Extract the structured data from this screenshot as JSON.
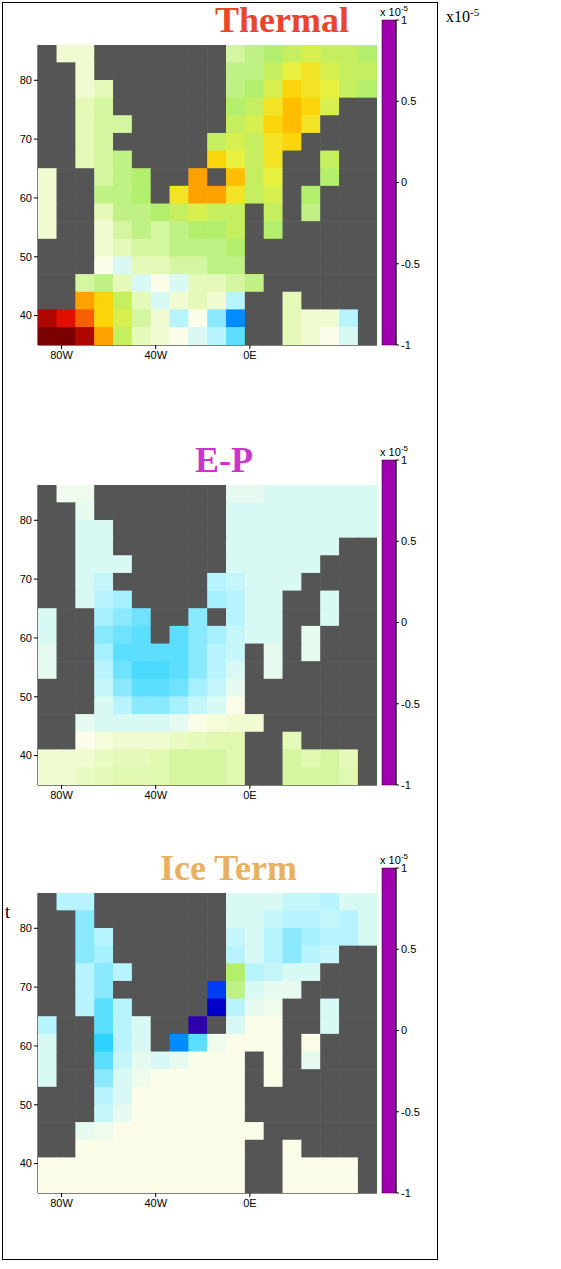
{
  "chart_data": [
    {
      "type": "heatmap",
      "title": "Thermal",
      "color": "#e8452c",
      "x": [
        -86,
        -78,
        -70,
        -62,
        -54,
        -46,
        -38,
        -30,
        -22,
        -14,
        -6,
        2,
        10,
        18,
        26,
        34,
        42,
        50
      ],
      "y": [
        84.5,
        81.5,
        78.5,
        75.5,
        72.5,
        69.5,
        66.5,
        63.5,
        60.5,
        57.5,
        54.5,
        51.5,
        48.5,
        45.5,
        42.5,
        39.5,
        36.5
      ],
      "xlim": [
        -90,
        54
      ],
      "ylim": [
        35,
        86
      ],
      "xticks": [
        {
          "value": -80,
          "label": "80W"
        },
        {
          "value": -40,
          "label": "40W"
        },
        {
          "value": 0,
          "label": "0E"
        }
      ],
      "yticks": [
        40,
        50,
        60,
        70,
        80
      ],
      "cells": [
        [
          null,
          0.05,
          0.05,
          null,
          null,
          null,
          null,
          null,
          null,
          null,
          0.15,
          0.2,
          0.25,
          0.3,
          0.35,
          0.3,
          0.3,
          0.25
        ],
        [
          null,
          null,
          0.05,
          null,
          null,
          null,
          null,
          null,
          null,
          null,
          0.2,
          0.2,
          0.3,
          0.4,
          0.45,
          0.35,
          0.3,
          0.3
        ],
        [
          null,
          null,
          0.05,
          0.1,
          null,
          null,
          null,
          null,
          null,
          null,
          0.2,
          0.25,
          0.35,
          0.5,
          0.45,
          0.4,
          0.3,
          0.25
        ],
        [
          null,
          null,
          0.1,
          0.15,
          null,
          null,
          null,
          null,
          null,
          null,
          0.25,
          0.3,
          0.45,
          0.55,
          0.5,
          0.35,
          null,
          null
        ],
        [
          null,
          null,
          0.1,
          0.15,
          0.15,
          null,
          null,
          null,
          null,
          null,
          0.3,
          0.35,
          0.5,
          0.55,
          0.45,
          null,
          null,
          null
        ],
        [
          null,
          null,
          0.1,
          0.15,
          null,
          null,
          null,
          null,
          null,
          0.3,
          0.35,
          0.3,
          0.45,
          0.5,
          null,
          null,
          null,
          null
        ],
        [
          null,
          null,
          0.1,
          0.15,
          0.2,
          null,
          null,
          null,
          null,
          0.5,
          0.4,
          0.3,
          0.45,
          null,
          null,
          0.3,
          null,
          null
        ],
        [
          0.05,
          null,
          null,
          0.15,
          0.2,
          0.25,
          null,
          null,
          0.6,
          null,
          0.55,
          0.3,
          0.4,
          null,
          null,
          0.25,
          null,
          null
        ],
        [
          0.05,
          null,
          null,
          0.2,
          0.2,
          0.25,
          null,
          0.45,
          0.6,
          0.6,
          0.45,
          0.3,
          0.35,
          null,
          0.25,
          null,
          null,
          null
        ],
        [
          0.05,
          null,
          null,
          0.1,
          0.2,
          0.2,
          0.25,
          0.3,
          0.35,
          0.3,
          0.3,
          null,
          0.3,
          null,
          0.2,
          null,
          null,
          null
        ],
        [
          0.05,
          null,
          null,
          0.05,
          0.15,
          0.2,
          0.15,
          0.2,
          0.25,
          0.25,
          0.3,
          null,
          0.25,
          null,
          null,
          null,
          null,
          null
        ],
        [
          null,
          null,
          null,
          0.05,
          0.1,
          0.15,
          0.15,
          0.2,
          0.2,
          0.2,
          0.25,
          null,
          null,
          null,
          null,
          null,
          null,
          null
        ],
        [
          null,
          null,
          null,
          0,
          -0.05,
          0.1,
          0.1,
          0.15,
          0.15,
          0.2,
          0.2,
          null,
          null,
          null,
          null,
          null,
          null,
          null
        ],
        [
          null,
          null,
          0.15,
          0.2,
          0.1,
          -0.05,
          0,
          -0.05,
          0.1,
          0.1,
          0.15,
          0.2,
          null,
          null,
          null,
          null,
          null,
          null
        ],
        [
          null,
          null,
          0.6,
          0.5,
          0.3,
          0.1,
          -0.05,
          0.05,
          0.1,
          0.05,
          -0.1,
          null,
          null,
          0.1,
          null,
          null,
          null,
          null
        ],
        [
          0.9,
          0.8,
          0.7,
          0.5,
          0.35,
          0.15,
          0.05,
          -0.1,
          0,
          -0.15,
          -0.4,
          null,
          null,
          0.1,
          0.05,
          0.05,
          -0.1,
          null
        ],
        [
          1,
          1,
          0.9,
          0.6,
          0.3,
          0.1,
          0.05,
          0,
          -0.05,
          -0.1,
          -0.2,
          null,
          null,
          0.1,
          0.05,
          0,
          -0.05,
          null
        ]
      ],
      "colorbar": {
        "range": [
          -1,
          1
        ],
        "ticks": [
          -1,
          -0.5,
          0,
          0.5,
          1
        ],
        "multiplier": "x 10",
        "multiplier_exponent": "-5"
      }
    },
    {
      "type": "heatmap",
      "title": "E-P",
      "color": "#cc33cc",
      "x": [
        -86,
        -78,
        -70,
        -62,
        -54,
        -46,
        -38,
        -30,
        -22,
        -14,
        -6,
        2,
        10,
        18,
        26,
        34,
        42,
        50
      ],
      "y": [
        84.5,
        81.5,
        78.5,
        75.5,
        72.5,
        69.5,
        66.5,
        63.5,
        60.5,
        57.5,
        54.5,
        51.5,
        48.5,
        45.5,
        42.5,
        39.5,
        36.5
      ],
      "xlim": [
        -90,
        54
      ],
      "ylim": [
        35,
        86
      ],
      "xticks": [
        {
          "value": -80,
          "label": "80W"
        },
        {
          "value": -40,
          "label": "40W"
        },
        {
          "value": 0,
          "label": "0E"
        }
      ],
      "yticks": [
        40,
        50,
        60,
        70,
        80
      ],
      "cells": [
        [
          null,
          -0.02,
          -0.02,
          null,
          null,
          null,
          null,
          null,
          null,
          null,
          -0.03,
          -0.03,
          -0.05,
          -0.05,
          -0.05,
          -0.05,
          -0.05,
          -0.05
        ],
        [
          null,
          null,
          -0.03,
          null,
          null,
          null,
          null,
          null,
          null,
          null,
          -0.05,
          -0.05,
          -0.05,
          -0.05,
          -0.05,
          -0.05,
          -0.05,
          -0.05
        ],
        [
          null,
          null,
          -0.05,
          -0.05,
          null,
          null,
          null,
          null,
          null,
          null,
          -0.05,
          -0.05,
          -0.05,
          -0.05,
          -0.05,
          -0.05,
          -0.05,
          -0.05
        ],
        [
          null,
          null,
          -0.05,
          -0.05,
          null,
          null,
          null,
          null,
          null,
          null,
          -0.05,
          -0.05,
          -0.05,
          -0.05,
          -0.05,
          -0.05,
          null,
          null
        ],
        [
          null,
          null,
          -0.05,
          -0.05,
          -0.05,
          null,
          null,
          null,
          null,
          null,
          -0.05,
          -0.05,
          -0.05,
          -0.05,
          -0.05,
          null,
          null,
          null
        ],
        [
          null,
          null,
          -0.05,
          -0.08,
          null,
          null,
          null,
          null,
          null,
          -0.1,
          -0.08,
          -0.05,
          -0.05,
          -0.05,
          null,
          null,
          null,
          null
        ],
        [
          null,
          null,
          -0.05,
          -0.1,
          -0.12,
          null,
          null,
          null,
          null,
          -0.12,
          -0.1,
          -0.05,
          -0.05,
          null,
          null,
          -0.05,
          null,
          null
        ],
        [
          -0.05,
          null,
          null,
          -0.12,
          -0.15,
          -0.18,
          null,
          null,
          -0.15,
          null,
          -0.1,
          -0.05,
          -0.05,
          null,
          null,
          -0.05,
          null,
          null
        ],
        [
          -0.05,
          null,
          null,
          -0.15,
          -0.18,
          -0.2,
          null,
          -0.2,
          -0.15,
          -0.12,
          -0.08,
          -0.05,
          -0.05,
          null,
          -0.03,
          null,
          null,
          null
        ],
        [
          -0.03,
          null,
          null,
          -0.12,
          -0.2,
          -0.2,
          -0.2,
          -0.2,
          -0.15,
          -0.1,
          -0.08,
          null,
          -0.03,
          null,
          -0.03,
          null,
          null,
          null
        ],
        [
          -0.03,
          null,
          null,
          -0.1,
          -0.18,
          -0.22,
          -0.22,
          -0.2,
          -0.15,
          -0.1,
          -0.05,
          null,
          -0.03,
          null,
          null,
          null,
          null,
          null
        ],
        [
          null,
          null,
          null,
          -0.08,
          -0.15,
          -0.2,
          -0.2,
          -0.18,
          -0.12,
          -0.08,
          -0.03,
          null,
          null,
          null,
          null,
          null,
          null,
          null
        ],
        [
          null,
          null,
          null,
          -0.05,
          -0.1,
          -0.15,
          -0.15,
          -0.12,
          -0.08,
          -0.05,
          0,
          null,
          null,
          null,
          null,
          null,
          null,
          null
        ],
        [
          null,
          null,
          -0.03,
          -0.05,
          -0.05,
          -0.05,
          -0.05,
          -0.03,
          0,
          0.03,
          0.05,
          0.05,
          null,
          null,
          null,
          null,
          null,
          null
        ],
        [
          null,
          null,
          0,
          0.03,
          0.05,
          0.05,
          0.05,
          0.08,
          0.1,
          0.12,
          0.12,
          null,
          null,
          0.1,
          null,
          null,
          null,
          null
        ],
        [
          0.05,
          0.05,
          0.05,
          0.08,
          0.1,
          0.1,
          0.12,
          0.15,
          0.15,
          0.15,
          0.12,
          null,
          null,
          0.15,
          0.12,
          0.15,
          0.1,
          null
        ],
        [
          0.05,
          0.05,
          0.08,
          0.1,
          0.12,
          0.12,
          0.12,
          0.15,
          0.15,
          0.15,
          0.12,
          null,
          null,
          0.15,
          0.15,
          0.15,
          0.12,
          null
        ]
      ],
      "colorbar": {
        "range": [
          -1,
          1
        ],
        "ticks": [
          -1,
          -0.5,
          0,
          0.5,
          1
        ],
        "multiplier": "x 10",
        "multiplier_exponent": "-5"
      }
    },
    {
      "type": "heatmap",
      "title": "Ice Term",
      "color": "#e8b060",
      "x": [
        -86,
        -78,
        -70,
        -62,
        -54,
        -46,
        -38,
        -30,
        -22,
        -14,
        -6,
        2,
        10,
        18,
        26,
        34,
        42,
        50
      ],
      "y": [
        84.5,
        81.5,
        78.5,
        75.5,
        72.5,
        69.5,
        66.5,
        63.5,
        60.5,
        57.5,
        54.5,
        51.5,
        48.5,
        45.5,
        42.5,
        39.5,
        36.5
      ],
      "xlim": [
        -90,
        54
      ],
      "ylim": [
        35,
        86
      ],
      "xticks": [
        {
          "value": -80,
          "label": "80W"
        },
        {
          "value": -40,
          "label": "40W"
        },
        {
          "value": 0,
          "label": "0E"
        }
      ],
      "yticks": [
        40,
        50,
        60,
        70,
        80
      ],
      "cells": [
        [
          null,
          -0.1,
          -0.1,
          null,
          null,
          null,
          null,
          null,
          null,
          null,
          -0.05,
          -0.05,
          -0.05,
          -0.08,
          -0.08,
          -0.1,
          -0.05,
          -0.05
        ],
        [
          null,
          null,
          -0.15,
          null,
          null,
          null,
          null,
          null,
          null,
          null,
          -0.05,
          -0.05,
          -0.08,
          -0.1,
          -0.1,
          -0.08,
          -0.1,
          -0.05
        ],
        [
          null,
          null,
          -0.15,
          -0.1,
          null,
          null,
          null,
          null,
          null,
          null,
          -0.08,
          -0.05,
          -0.1,
          -0.15,
          -0.12,
          -0.1,
          -0.1,
          -0.05
        ],
        [
          null,
          null,
          -0.15,
          -0.12,
          null,
          null,
          null,
          null,
          null,
          null,
          -0.1,
          -0.05,
          -0.1,
          -0.15,
          -0.1,
          -0.08,
          null,
          null
        ],
        [
          null,
          null,
          -0.1,
          -0.15,
          -0.1,
          null,
          null,
          null,
          null,
          null,
          0.25,
          -0.1,
          -0.08,
          -0.05,
          -0.05,
          null,
          null,
          null
        ],
        [
          null,
          null,
          -0.1,
          -0.15,
          null,
          null,
          null,
          null,
          null,
          -0.55,
          0.2,
          -0.05,
          -0.03,
          -0.03,
          null,
          null,
          null,
          null
        ],
        [
          null,
          null,
          -0.1,
          -0.2,
          -0.1,
          null,
          null,
          null,
          null,
          -0.7,
          -0.1,
          -0.03,
          -0.02,
          null,
          null,
          -0.05,
          null,
          null
        ],
        [
          -0.1,
          null,
          null,
          -0.2,
          -0.1,
          -0.05,
          null,
          null,
          -0.8,
          null,
          -0.05,
          0,
          0,
          null,
          null,
          -0.05,
          null,
          null
        ],
        [
          -0.05,
          null,
          null,
          -0.25,
          -0.1,
          -0.05,
          null,
          -0.4,
          -0.2,
          -0.02,
          0,
          0,
          0,
          null,
          0,
          null,
          null,
          null
        ],
        [
          -0.05,
          null,
          null,
          -0.2,
          -0.08,
          -0.03,
          -0.05,
          -0.03,
          0,
          0,
          0,
          null,
          0,
          null,
          -0.03,
          null,
          null,
          null
        ],
        [
          -0.05,
          null,
          null,
          -0.15,
          -0.05,
          -0.02,
          0,
          0,
          0,
          0,
          0,
          null,
          0,
          null,
          null,
          null,
          null,
          null
        ],
        [
          null,
          null,
          null,
          -0.1,
          -0.05,
          0,
          0,
          0,
          0,
          0,
          0,
          null,
          null,
          null,
          null,
          null,
          null,
          null
        ],
        [
          null,
          null,
          null,
          -0.08,
          -0.03,
          0,
          0,
          0,
          0,
          0,
          0,
          null,
          null,
          null,
          null,
          null,
          null,
          null
        ],
        [
          null,
          null,
          -0.03,
          -0.02,
          0,
          0,
          0,
          0,
          0,
          0,
          0,
          0,
          null,
          null,
          null,
          null,
          null,
          null
        ],
        [
          null,
          null,
          0,
          0,
          0,
          0,
          0,
          0,
          0,
          0,
          0,
          null,
          null,
          0,
          null,
          null,
          null,
          null
        ],
        [
          0,
          0,
          0,
          0,
          0,
          0,
          0,
          0,
          0,
          0,
          0,
          null,
          null,
          0,
          0,
          0,
          0,
          null
        ],
        [
          0,
          0,
          0,
          0,
          0,
          0,
          0,
          0,
          0,
          0,
          0,
          null,
          null,
          0,
          0,
          0,
          0,
          null
        ]
      ],
      "colorbar": {
        "range": [
          -1,
          1
        ],
        "ticks": [
          -1,
          -0.5,
          0,
          0.5,
          1
        ],
        "multiplier": "x 10",
        "multiplier_exponent": "-5"
      }
    }
  ],
  "annotations": [
    {
      "text": "x10",
      "exponent": "-5"
    },
    {
      "text": "t"
    }
  ]
}
